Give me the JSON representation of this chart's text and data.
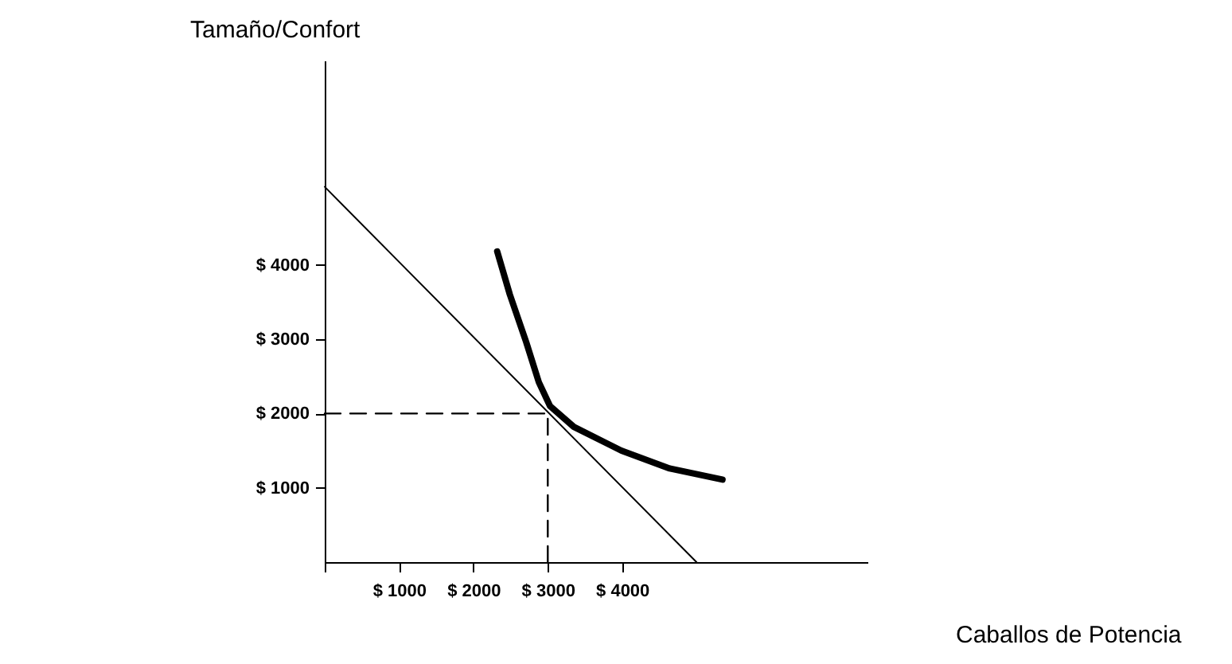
{
  "chart_data": {
    "type": "line",
    "xlabel": "Caballos de Potencia",
    "ylabel": "Tamaño/Confort",
    "xlim": [
      0,
      7300
    ],
    "ylim": [
      0,
      6750
    ],
    "xticks": [
      {
        "value": 0,
        "label": null
      },
      {
        "value": 1000,
        "label": "$ 1000"
      },
      {
        "value": 2000,
        "label": "$ 2000"
      },
      {
        "value": 3000,
        "label": "$ 3000"
      },
      {
        "value": 4000,
        "label": "$ 4000"
      }
    ],
    "yticks": [
      {
        "value": 1000,
        "label": "$ 1000"
      },
      {
        "value": 2000,
        "label": "$ 2000"
      },
      {
        "value": 3000,
        "label": "$ 3000"
      },
      {
        "value": 4000,
        "label": "$ 4000"
      }
    ],
    "grid": false,
    "marker": "none",
    "series": [
      {
        "color": "#000000",
        "line_style": "solid",
        "x": [
          0,
          5000
        ],
        "values": [
          5050,
          0
        ]
      },
      {
        "color": "#000000",
        "line_style": "solid",
        "x": [
          2320,
          2490,
          2710,
          2880,
          3030,
          3350,
          3990,
          4640,
          5350
        ],
        "values": [
          4180,
          3600,
          2960,
          2420,
          2100,
          1820,
          1500,
          1260,
          1110
        ]
      },
      {
        "color": "#000000",
        "line_style": "dashed",
        "x": [
          0,
          3000
        ],
        "values": [
          2000,
          2000
        ]
      },
      {
        "color": "#000000",
        "line_style": "dashed",
        "x": [
          3000,
          3000
        ],
        "values": [
          0,
          2000
        ]
      }
    ]
  }
}
